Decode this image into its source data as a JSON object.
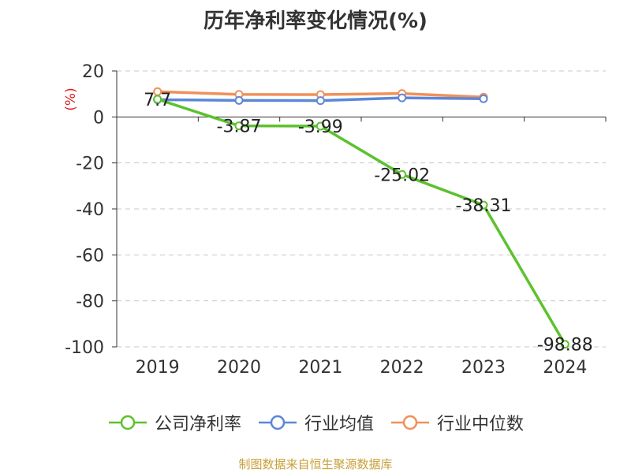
{
  "title": "历年净利率变化情况(%)",
  "source": "制图数据来自恒生聚源数据库",
  "chart_data": {
    "type": "line",
    "title": "历年净利率变化情况(%)",
    "ylabel": "(%)",
    "categories": [
      "2019",
      "2020",
      "2021",
      "2022",
      "2023",
      "2024"
    ],
    "ylim": [
      -100,
      20
    ],
    "yticks": [
      20,
      0,
      -20,
      -40,
      -60,
      -80,
      -100
    ],
    "grid": true,
    "legend_position": "bottom",
    "series": [
      {
        "name": "公司净利率",
        "color": "#5cc22e",
        "values": [
          7.7,
          -3.87,
          -3.99,
          -25.02,
          -38.31,
          -98.88
        ],
        "labels": [
          "7.7",
          "-3.87",
          "-3.99",
          "-25.02",
          "-38.31",
          "-98.88"
        ]
      },
      {
        "name": "行业均值",
        "color": "#5b87d8",
        "values": [
          7.5,
          7.2,
          7.1,
          8.3,
          7.9,
          null
        ]
      },
      {
        "name": "行业中位数",
        "color": "#f0905a",
        "values": [
          11.0,
          9.8,
          9.7,
          10.2,
          8.6,
          null
        ]
      }
    ]
  }
}
